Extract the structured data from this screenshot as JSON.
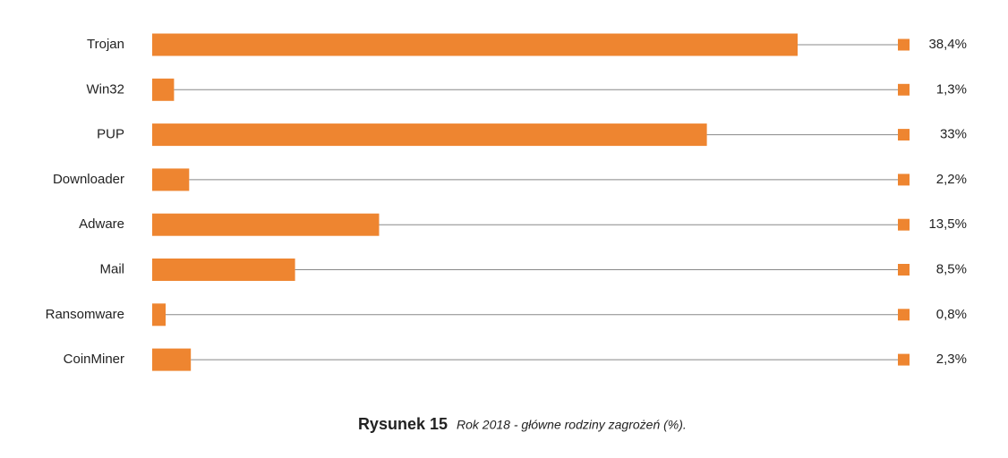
{
  "chart_data": {
    "type": "bar",
    "orientation": "horizontal",
    "title": "Rysunek 15",
    "subtitle": "Rok 2018 - główne rodziny zagrożeń (%).",
    "categories": [
      "Trojan",
      "Win32",
      "PUP",
      "Downloader",
      "Adware",
      "Mail",
      "Ransomware",
      "CoinMiner"
    ],
    "values": [
      38.4,
      1.3,
      33,
      2.2,
      13.5,
      8.5,
      0.8,
      2.3
    ],
    "value_labels": [
      "38,4%",
      "1,3%",
      "33%",
      "2,2%",
      "13,5%",
      "8,5%",
      "0,8%",
      "2,3%"
    ],
    "color": "#ee8530"
  }
}
